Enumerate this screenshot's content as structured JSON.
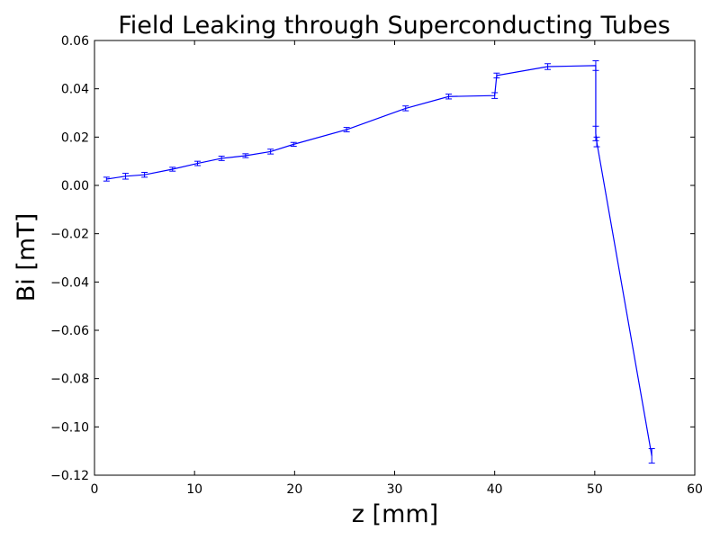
{
  "chart_data": {
    "type": "line",
    "title": "Field Leaking through Superconducting Tubes",
    "xlabel": "z [mm]",
    "ylabel": "Bi [mT]",
    "xlim": [
      0,
      60
    ],
    "ylim": [
      -0.12,
      0.06
    ],
    "x_ticks": [
      0,
      10,
      20,
      30,
      40,
      50,
      60
    ],
    "y_ticks": [
      0.06,
      0.04,
      0.02,
      0.0,
      -0.02,
      -0.04,
      -0.06,
      -0.08,
      -0.1,
      -0.12
    ],
    "x_tick_labels": [
      "0",
      "10",
      "20",
      "30",
      "40",
      "50",
      "60"
    ],
    "y_tick_labels": [
      "0.06",
      "0.04",
      "0.02",
      "0.00",
      "−0.02",
      "−0.04",
      "−0.06",
      "−0.08",
      "−0.10",
      "−0.12"
    ],
    "grid": false,
    "series": [
      {
        "color": "#0000ff",
        "points": [
          {
            "x": 1.2,
            "y": 0.0026,
            "err": 0.0008
          },
          {
            "x": 3.1,
            "y": 0.0038,
            "err": 0.0012
          },
          {
            "x": 5.0,
            "y": 0.0044,
            "err": 0.001
          },
          {
            "x": 7.8,
            "y": 0.0067,
            "err": 0.0008
          },
          {
            "x": 10.3,
            "y": 0.0091,
            "err": 0.0009
          },
          {
            "x": 12.7,
            "y": 0.0112,
            "err": 0.0009
          },
          {
            "x": 15.1,
            "y": 0.0123,
            "err": 0.0008
          },
          {
            "x": 17.6,
            "y": 0.014,
            "err": 0.001
          },
          {
            "x": 19.9,
            "y": 0.017,
            "err": 0.0008
          },
          {
            "x": 25.2,
            "y": 0.0231,
            "err": 0.0009
          },
          {
            "x": 31.1,
            "y": 0.0319,
            "err": 0.001
          },
          {
            "x": 35.4,
            "y": 0.0368,
            "err": 0.001
          },
          {
            "x": 40.0,
            "y": 0.0372,
            "err": 0.0012
          },
          {
            "x": 40.2,
            "y": 0.0455,
            "err": 0.001
          },
          {
            "x": 45.3,
            "y": 0.0492,
            "err": 0.0012
          },
          {
            "x": 50.1,
            "y": 0.0496,
            "err": 0.002
          },
          {
            "x": 50.1,
            "y": 0.0215,
            "err": 0.003
          },
          {
            "x": 50.2,
            "y": 0.018,
            "err": 0.002
          },
          {
            "x": 55.7,
            "y": -0.112,
            "err": 0.003
          }
        ]
      }
    ]
  }
}
